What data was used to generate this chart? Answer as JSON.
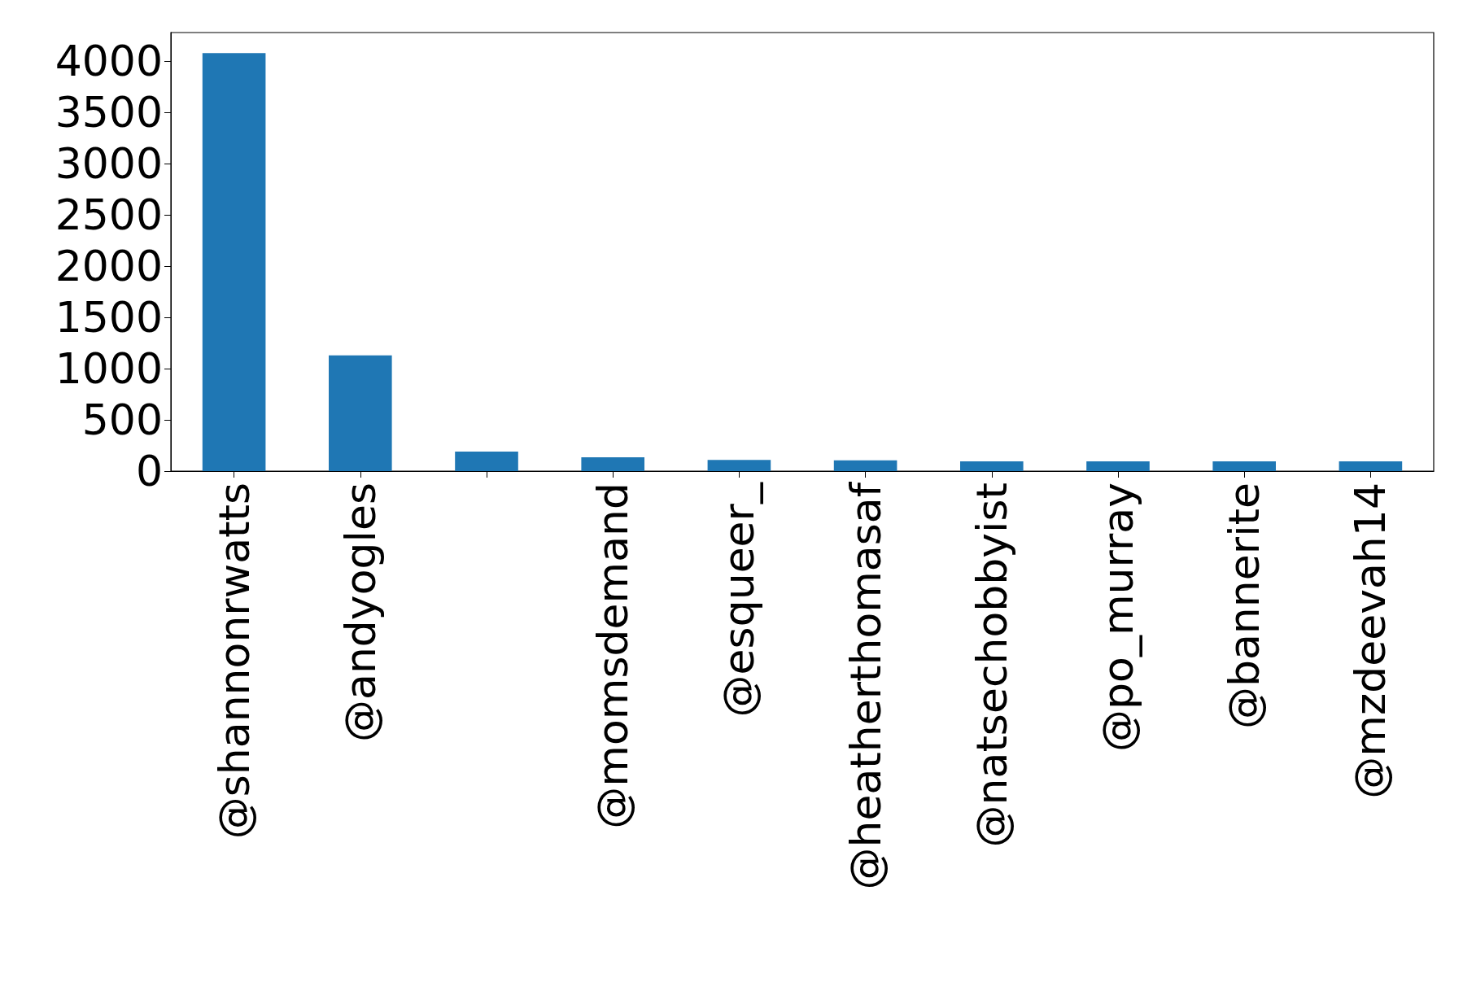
{
  "chart_data": {
    "type": "bar",
    "categories": [
      "@shannonrwatts",
      "@andyogles",
      null,
      "@momsdemand",
      "@esqueer_",
      "@heatherthomasaf",
      "@natsechobbyist",
      "@po_murray",
      "@bannerite",
      "@mzdeevah14"
    ],
    "values": [
      4080,
      1130,
      190,
      135,
      110,
      105,
      95,
      95,
      95,
      95
    ],
    "color": "#1f77b4",
    "ylim": [
      0,
      4280
    ],
    "yticks": [
      0,
      500,
      1000,
      1500,
      2000,
      2500,
      3000,
      3500,
      4000
    ]
  }
}
